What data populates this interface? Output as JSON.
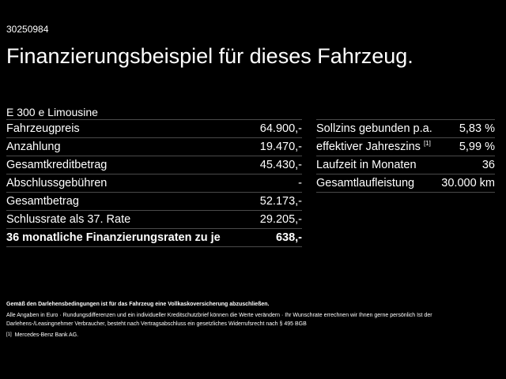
{
  "ref_number": "30250984",
  "title": "Finanzierungsbeispiel für dieses Fahrzeug.",
  "model": "E 300 e Limousine",
  "left_table": [
    {
      "label": "Fahrzeugpreis",
      "value": "64.900,-"
    },
    {
      "label": "Anzahlung",
      "value": "19.470,-"
    },
    {
      "label": "Gesamtkreditbetrag",
      "value": "45.430,-"
    },
    {
      "label": "Abschlussgebühren",
      "value": "-"
    },
    {
      "label": "Gesamtbetrag",
      "value": "52.173,-"
    },
    {
      "label": "Schlussrate als 37. Rate",
      "value": "29.205,-"
    },
    {
      "label": "36 monatliche Finanzierungsraten zu je",
      "value": "638,-"
    }
  ],
  "right_table": [
    {
      "label": "Sollzins gebunden p.a.",
      "value": "5,83 %"
    },
    {
      "label": "effektiver Jahreszins",
      "footnote": "[1]",
      "value": "5,99 %"
    },
    {
      "label": "Laufzeit in Monaten",
      "value": "36"
    },
    {
      "label": "Gesamtlaufleistung",
      "value": "30.000 km"
    }
  ],
  "notes": {
    "insurance": "Gemäß den Darlehensbedingungen ist für das Fahrzeug eine Vollkaskoversicherung abzuschließen.",
    "disclaimer": "Alle Angaben in Euro · Rundungsdifferenzen und ein individueller Kreditschutzbrief können die Werte verändern · Ihr Wunschrate errechnen wir Ihnen gerne persönlich Ist der Darlehens-/Leasingnehmer Verbraucher, besteht nach Vertragsabschluss ein gesetzliches Widerrufsrecht nach § 495 BGB",
    "footnote_mark": "[1]",
    "footnote_text": "Mercedes-Benz Bank AG."
  }
}
